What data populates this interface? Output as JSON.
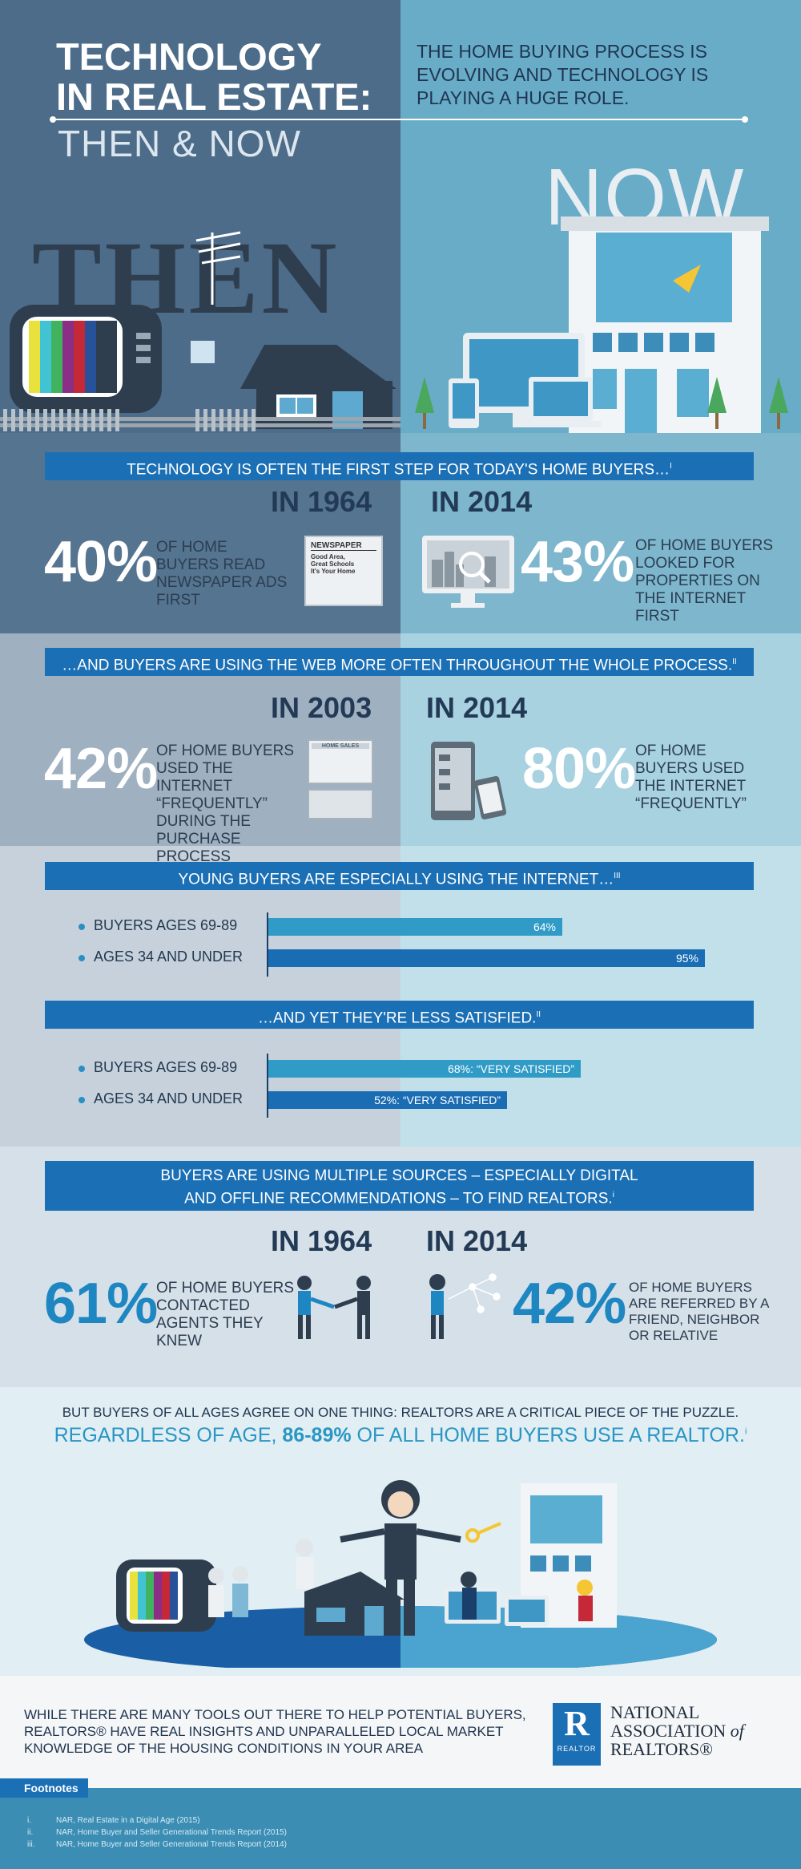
{
  "header": {
    "title_line1": "TECHNOLOGY",
    "title_line2": "IN REAL ESTATE:",
    "subtitle": "THEN & NOW",
    "tagline": "THE HOME BUYING PROCESS IS EVOLVING AND TECHNOLOGY IS PLAYING A HUGE ROLE.",
    "then_word": "THEN",
    "now_word": "NOW"
  },
  "section1": {
    "banner": "TECHNOLOGY IS OFTEN THE FIRST STEP FOR TODAY'S HOME BUYERS…",
    "footnote_ref": "i",
    "left": {
      "year": "IN 1964",
      "percent": "40%",
      "text": "OF HOME BUYERS READ NEWSPAPER ADS FIRST"
    },
    "right": {
      "year": "IN 2014",
      "percent": "43%",
      "text": "OF HOME BUYERS LOOKED FOR PROPERTIES ON THE INTERNET FIRST"
    },
    "newspaper": {
      "masthead": "NEWSPAPER",
      "line1": "Good Area,",
      "line2": "Great Schools",
      "line3": "It's Your Home"
    }
  },
  "section2": {
    "banner": "…AND BUYERS ARE USING THE WEB MORE OFTEN THROUGHOUT THE WHOLE PROCESS.",
    "footnote_ref": "ii",
    "left": {
      "year": "IN 2003",
      "percent": "42%",
      "text": "OF HOME BUYERS USED THE INTERNET “FREQUENTLY” DURING THE PURCHASE PROCESS"
    },
    "right": {
      "year": "IN 2014",
      "percent": "80%",
      "text": "OF HOME BUYERS USED THE INTERNET “FREQUENTLY”"
    },
    "screen_label": "HOME SALES"
  },
  "section3": {
    "banner1": "YOUNG BUYERS ARE ESPECIALLY USING THE INTERNET…",
    "banner1_ref": "iii",
    "bars1": [
      {
        "label": "BUYERS AGES 69-89",
        "value": 64,
        "text": "64%"
      },
      {
        "label": "AGES 34 AND UNDER",
        "value": 95,
        "text": "95%"
      }
    ],
    "banner2": "…AND YET THEY'RE LESS SATISFIED.",
    "banner2_ref": "ii",
    "bars2": [
      {
        "label": "BUYERS AGES 69-89",
        "value": 68,
        "text": "68%: “VERY SATISFIED”"
      },
      {
        "label": "AGES 34 AND UNDER",
        "value": 52,
        "text": "52%: “VERY SATISFIED”"
      }
    ]
  },
  "section4": {
    "banner_line1": "BUYERS ARE USING MULTIPLE SOURCES – ESPECIALLY DIGITAL",
    "banner_line2": "AND OFFLINE RECOMMENDATIONS – TO FIND REALTORS.",
    "banner_ref": "i",
    "left": {
      "year": "IN 1964",
      "percent": "61%",
      "text": "OF HOME BUYERS CONTACTED AGENTS THEY KNEW"
    },
    "right": {
      "year": "IN 2014",
      "percent": "42%",
      "text": "OF HOME BUYERS ARE REFERRED BY A FRIEND, NEIGHBOR OR RELATIVE"
    }
  },
  "section5": {
    "line1": "BUT BUYERS OF ALL AGES AGREE ON ONE THING: REALTORS ARE A CRITICAL PIECE OF THE PUZZLE.",
    "line2_a": "REGARDLESS OF AGE, ",
    "line2_b": "86-89%",
    "line2_c": " OF ALL HOME BUYERS USE A REALTOR.",
    "line2_ref": "i"
  },
  "section6": {
    "text": "WHILE THERE ARE MANY TOOLS OUT THERE TO HELP POTENTIAL BUYERS, REALTORS® HAVE REAL INSIGHTS AND UNPARALLELED LOCAL MARKET KNOWLEDGE OF THE HOUSING CONDITIONS IN YOUR AREA",
    "logo_word": "REALTOR",
    "logo_line1": "NATIONAL",
    "logo_line2": "ASSOCIATION",
    "logo_of": "of",
    "logo_line3": "REALTORS®"
  },
  "footnotes": {
    "title": "Footnotes",
    "items": [
      {
        "num": "i.",
        "text": "NAR, Real Estate in a Digital Age (2015)"
      },
      {
        "num": "ii.",
        "text": "NAR, Home Buyer and Seller Generational Trends Report (2015)"
      },
      {
        "num": "iii.",
        "text": "NAR, Home Buyer and Seller Generational Trends Report (2014)"
      }
    ]
  },
  "colors": {
    "banner_blue": "#1b6fb5",
    "bar_old": "#2f9bc6",
    "bar_young": "#1a6db3",
    "highlight": "#1e87c1"
  }
}
